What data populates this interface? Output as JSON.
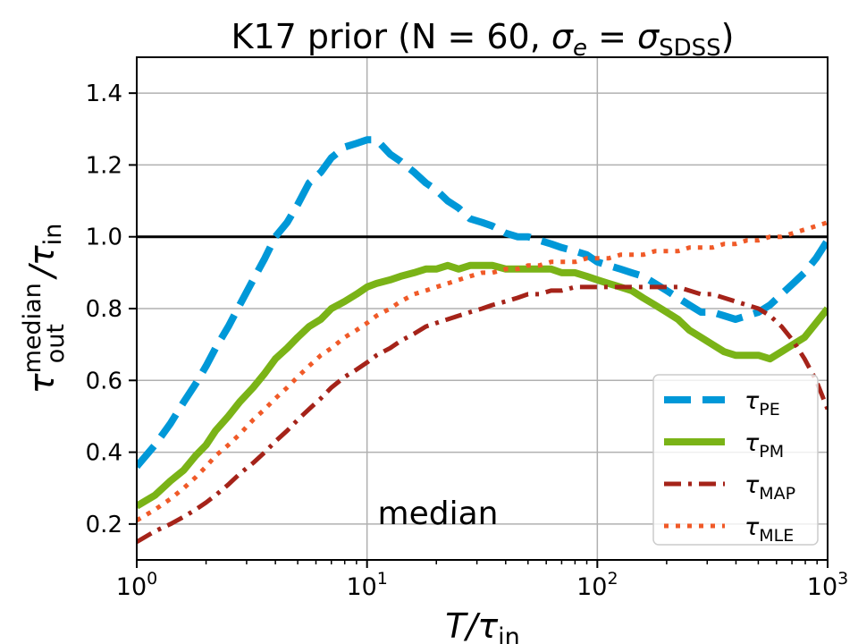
{
  "chart_data": {
    "type": "line",
    "title_main": "K17 prior (N = 60, ",
    "title_sigma": "σ",
    "title_sigma_sub": "e",
    "title_eq": " = ",
    "title_sigma2": "σ",
    "title_sigma2_sub": "SDSS",
    "title_close": ")",
    "xlabel_main": "T/τ",
    "xlabel_sub": "in",
    "ylabel_main": "τ",
    "ylabel_sup": "median",
    "ylabel_sub": "out",
    "ylabel_rest": "/τ",
    "ylabel_sub2": "in",
    "annotation": "median",
    "xscale": "log",
    "xlim": [
      1,
      1000
    ],
    "ylim": [
      0.1,
      1.5
    ],
    "grid": true,
    "reference_line": {
      "y": 1.0,
      "color": "#000000"
    },
    "legend_placement": "lower right",
    "x_ticks": [
      {
        "value": 1,
        "base": "10",
        "exp": "0"
      },
      {
        "value": 10,
        "base": "10",
        "exp": "1"
      },
      {
        "value": 100,
        "base": "10",
        "exp": "2"
      },
      {
        "value": 1000,
        "base": "10",
        "exp": "3"
      }
    ],
    "y_ticks": [
      {
        "value": 0.2,
        "label": "0.2"
      },
      {
        "value": 0.4,
        "label": "0.4"
      },
      {
        "value": 0.6,
        "label": "0.6"
      },
      {
        "value": 0.8,
        "label": "0.8"
      },
      {
        "value": 1.0,
        "label": "1.0"
      },
      {
        "value": 1.2,
        "label": "1.2"
      },
      {
        "value": 1.4,
        "label": "1.4"
      }
    ],
    "series": [
      {
        "name": "τ",
        "name_sub": "PE",
        "color": "#0098d8",
        "style": "dashed",
        "x": [
          1,
          1.2,
          1.4,
          1.6,
          1.8,
          2,
          2.2,
          2.5,
          2.8,
          3.2,
          3.6,
          4,
          4.5,
          5,
          5.6,
          6.3,
          7,
          8,
          9,
          10,
          11,
          12.6,
          14,
          16,
          18,
          20,
          22.4,
          25,
          28,
          31.6,
          35,
          40,
          45,
          50,
          56,
          63,
          70,
          80,
          90,
          100,
          112,
          126,
          141,
          158,
          178,
          200,
          224,
          251,
          282,
          316,
          355,
          398,
          447,
          501,
          562,
          631,
          708,
          794,
          891,
          1000
        ],
        "y": [
          0.36,
          0.42,
          0.48,
          0.54,
          0.59,
          0.64,
          0.69,
          0.75,
          0.81,
          0.88,
          0.94,
          1.0,
          1.04,
          1.09,
          1.15,
          1.18,
          1.22,
          1.25,
          1.26,
          1.27,
          1.27,
          1.23,
          1.21,
          1.18,
          1.15,
          1.13,
          1.1,
          1.08,
          1.05,
          1.04,
          1.03,
          1.01,
          1.0,
          1.0,
          0.99,
          0.98,
          0.97,
          0.96,
          0.95,
          0.93,
          0.92,
          0.91,
          0.9,
          0.89,
          0.87,
          0.85,
          0.83,
          0.81,
          0.79,
          0.79,
          0.78,
          0.77,
          0.78,
          0.79,
          0.81,
          0.84,
          0.87,
          0.9,
          0.94,
          0.99
        ]
      },
      {
        "name": "τ",
        "name_sub": "PM",
        "color": "#7ab317",
        "style": "solid",
        "x": [
          1,
          1.2,
          1.4,
          1.6,
          1.8,
          2,
          2.2,
          2.5,
          2.8,
          3.2,
          3.6,
          4,
          4.5,
          5,
          5.6,
          6.3,
          7,
          8,
          9,
          10,
          11,
          12.6,
          14,
          16,
          18,
          20,
          22.4,
          25,
          28,
          31.6,
          35,
          40,
          45,
          50,
          56,
          63,
          70,
          80,
          90,
          100,
          112,
          126,
          141,
          158,
          178,
          200,
          224,
          251,
          282,
          316,
          355,
          398,
          447,
          501,
          562,
          631,
          708,
          794,
          891,
          1000
        ],
        "y": [
          0.25,
          0.28,
          0.32,
          0.35,
          0.39,
          0.42,
          0.46,
          0.5,
          0.54,
          0.58,
          0.62,
          0.66,
          0.69,
          0.72,
          0.75,
          0.77,
          0.8,
          0.82,
          0.84,
          0.86,
          0.87,
          0.88,
          0.89,
          0.9,
          0.91,
          0.91,
          0.92,
          0.91,
          0.92,
          0.92,
          0.92,
          0.91,
          0.91,
          0.91,
          0.91,
          0.91,
          0.9,
          0.9,
          0.89,
          0.88,
          0.87,
          0.86,
          0.85,
          0.83,
          0.81,
          0.79,
          0.77,
          0.74,
          0.72,
          0.7,
          0.68,
          0.67,
          0.67,
          0.67,
          0.66,
          0.68,
          0.7,
          0.72,
          0.76,
          0.8
        ]
      },
      {
        "name": "τ",
        "name_sub": "MAP",
        "color": "#a52319",
        "style": "dashdot",
        "x": [
          1,
          1.2,
          1.4,
          1.6,
          1.8,
          2,
          2.2,
          2.5,
          2.8,
          3.2,
          3.6,
          4,
          4.5,
          5,
          5.6,
          6.3,
          7,
          8,
          9,
          10,
          11,
          12.6,
          14,
          16,
          18,
          20,
          22.4,
          25,
          28,
          31.6,
          35,
          40,
          45,
          50,
          56,
          63,
          70,
          80,
          90,
          100,
          112,
          126,
          141,
          158,
          178,
          200,
          224,
          251,
          282,
          316,
          355,
          398,
          447,
          501,
          562,
          631,
          708,
          794,
          891,
          1000
        ],
        "y": [
          0.15,
          0.18,
          0.2,
          0.22,
          0.24,
          0.26,
          0.28,
          0.31,
          0.34,
          0.37,
          0.4,
          0.43,
          0.46,
          0.49,
          0.52,
          0.55,
          0.58,
          0.61,
          0.63,
          0.65,
          0.67,
          0.69,
          0.71,
          0.73,
          0.75,
          0.76,
          0.77,
          0.78,
          0.79,
          0.8,
          0.81,
          0.82,
          0.83,
          0.84,
          0.84,
          0.85,
          0.85,
          0.86,
          0.86,
          0.86,
          0.86,
          0.86,
          0.86,
          0.86,
          0.86,
          0.86,
          0.86,
          0.85,
          0.84,
          0.84,
          0.83,
          0.82,
          0.81,
          0.8,
          0.78,
          0.75,
          0.71,
          0.66,
          0.6,
          0.52
        ]
      },
      {
        "name": "τ",
        "name_sub": "MLE",
        "color": "#f05a28",
        "style": "dotted",
        "x": [
          1,
          1.2,
          1.4,
          1.6,
          1.8,
          2,
          2.2,
          2.5,
          2.8,
          3.2,
          3.6,
          4,
          4.5,
          5,
          5.6,
          6.3,
          7,
          8,
          9,
          10,
          11,
          12.6,
          14,
          16,
          18,
          20,
          22.4,
          25,
          28,
          31.6,
          35,
          40,
          45,
          50,
          56,
          63,
          70,
          80,
          90,
          100,
          112,
          126,
          141,
          158,
          178,
          200,
          224,
          251,
          282,
          316,
          355,
          398,
          447,
          501,
          562,
          631,
          708,
          794,
          891,
          1000
        ],
        "y": [
          0.21,
          0.24,
          0.27,
          0.3,
          0.33,
          0.36,
          0.39,
          0.42,
          0.45,
          0.49,
          0.52,
          0.55,
          0.58,
          0.61,
          0.64,
          0.67,
          0.69,
          0.72,
          0.74,
          0.76,
          0.78,
          0.8,
          0.82,
          0.84,
          0.85,
          0.86,
          0.87,
          0.88,
          0.89,
          0.9,
          0.9,
          0.91,
          0.91,
          0.92,
          0.92,
          0.93,
          0.93,
          0.93,
          0.94,
          0.94,
          0.94,
          0.95,
          0.95,
          0.95,
          0.96,
          0.96,
          0.96,
          0.97,
          0.97,
          0.97,
          0.98,
          0.98,
          0.99,
          0.99,
          1.0,
          1.0,
          1.01,
          1.02,
          1.03,
          1.04
        ]
      }
    ]
  }
}
